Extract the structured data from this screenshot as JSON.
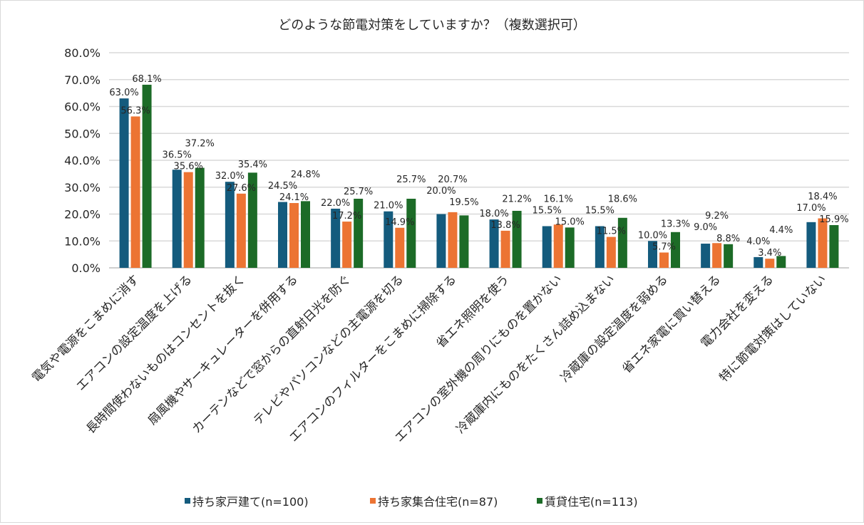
{
  "chart_data": {
    "type": "bar",
    "title": "どのような節電対策をしていますか？（複数選択可）",
    "categories": [
      "電気や電源をこまめに消す",
      "エアコンの設定温度を上げる",
      "長時間使わないものはコンセントを抜く",
      "扇風機やサーキュレーターを併用する",
      "カーテンなどで窓からの直射日光を防ぐ",
      "テレビやパソコンなどの主電源を切る",
      "エアコンのフィルターをこまめに掃除する",
      "省エネ照明を使う",
      "エアコンの室外機の周りにものを置かない",
      "冷蔵庫内にものをたくさん詰め込まない",
      "冷蔵庫の設定温度を弱める",
      "省エネ家電に買い替える",
      "電力会社を変える",
      "特に節電対策はしていない"
    ],
    "series": [
      {
        "name": "持ち家戸建て(n=100)",
        "color": "#145b7d",
        "values": [
          63.0,
          36.5,
          32.0,
          24.5,
          22.0,
          21.0,
          20.0,
          18.0,
          15.5,
          15.5,
          10.0,
          9.0,
          4.0,
          17.0
        ]
      },
      {
        "name": "持ち家集合住宅(n=87)",
        "color": "#ec7433",
        "values": [
          56.3,
          35.6,
          27.6,
          24.1,
          17.2,
          14.9,
          20.7,
          13.8,
          16.1,
          11.5,
          5.7,
          9.2,
          3.4,
          18.4
        ]
      },
      {
        "name": "賃貸住宅(n=113)",
        "color": "#1c6b27",
        "values": [
          68.1,
          37.2,
          35.4,
          24.8,
          25.7,
          25.7,
          19.5,
          21.2,
          15.0,
          18.6,
          13.3,
          8.8,
          4.4,
          15.9
        ]
      }
    ],
    "ylim": [
      0,
      80
    ],
    "yticks": [
      "0.0%",
      "10.0%",
      "20.0%",
      "30.0%",
      "40.0%",
      "50.0%",
      "60.0%",
      "70.0%",
      "80.0%"
    ],
    "grid": true,
    "legend": "bottom",
    "data_label_format": "percent-1dp"
  }
}
